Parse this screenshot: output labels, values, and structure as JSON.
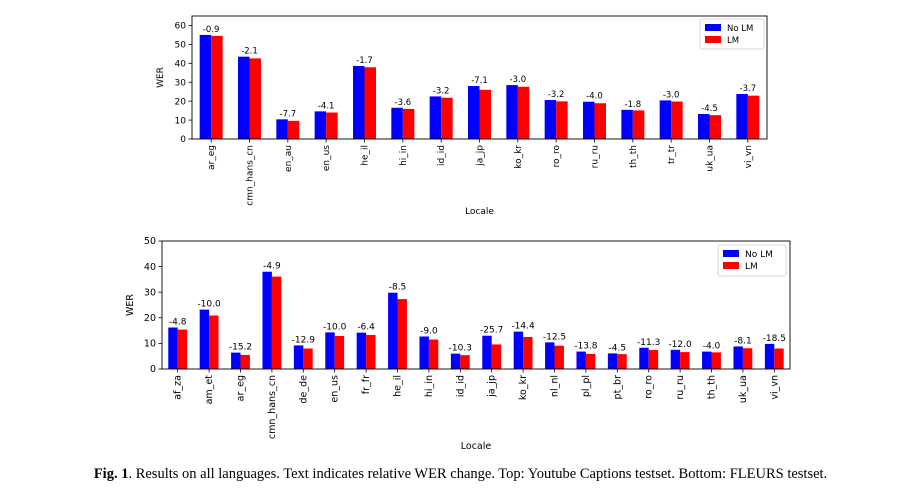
{
  "caption": {
    "label": "Fig. 1",
    "text": ". Results on all languages. Text indicates relative WER change. Top: Youtube Captions testset. Bottom: FLEURS testset."
  },
  "colors": {
    "no_lm": "#0000ff",
    "lm": "#ff0000"
  },
  "chart_data": [
    {
      "type": "bar",
      "title": "",
      "xlabel": "Locale",
      "ylabel": "WER",
      "ylim": [
        0,
        65
      ],
      "yticks": [
        0,
        10,
        20,
        30,
        40,
        50,
        60
      ],
      "grid": false,
      "legend_position": "top-right",
      "categories": [
        "ar_eg",
        "cmn_hans_cn",
        "en_au",
        "en_us",
        "he_il",
        "hi_in",
        "id_id",
        "ja_jp",
        "ko_kr",
        "ro_ro",
        "ru_ru",
        "th_th",
        "tr_tr",
        "uk_ua",
        "vi_vn"
      ],
      "series": [
        {
          "name": "No LM",
          "color": "#0000ff",
          "values": [
            55.0,
            43.5,
            10.4,
            14.6,
            38.6,
            16.5,
            22.5,
            28.0,
            28.5,
            20.6,
            19.7,
            15.4,
            20.4,
            13.2,
            23.8
          ]
        },
        {
          "name": "LM",
          "color": "#ff0000",
          "values": [
            54.5,
            42.6,
            9.6,
            14.0,
            37.9,
            15.9,
            21.8,
            26.0,
            27.6,
            19.9,
            18.9,
            15.1,
            19.8,
            12.6,
            22.9
          ]
        }
      ],
      "labels": [
        "-0.9",
        "-2.1",
        "-7.7",
        "-4.1",
        "-1.7",
        "-3.6",
        "-3.2",
        "-7.1",
        "-3.0",
        "-3.2",
        "-4.0",
        "-1.8",
        "-3.0",
        "-4.5",
        "-3.7"
      ]
    },
    {
      "type": "bar",
      "title": "",
      "xlabel": "Locale",
      "ylabel": "WER",
      "ylim": [
        0,
        50
      ],
      "yticks": [
        0,
        10,
        20,
        30,
        40,
        50
      ],
      "grid": false,
      "legend_position": "top-right",
      "categories": [
        "af_za",
        "am_et",
        "ar_eg",
        "cmn_hans_cn",
        "de_de",
        "en_us",
        "fr_fr",
        "he_il",
        "hi_in",
        "id_id",
        "ja_jp",
        "ko_kr",
        "nl_nl",
        "pl_pl",
        "pt_br",
        "ro_ro",
        "ru_ru",
        "th_th",
        "uk_ua",
        "vi_vn"
      ],
      "series": [
        {
          "name": "No LM",
          "color": "#0000ff",
          "values": [
            16.2,
            23.2,
            6.4,
            38.0,
            9.2,
            14.3,
            14.2,
            29.8,
            12.7,
            6.0,
            13.0,
            14.6,
            10.4,
            6.8,
            6.1,
            8.3,
            7.5,
            6.8,
            8.8,
            9.8
          ]
        },
        {
          "name": "LM",
          "color": "#ff0000",
          "values": [
            15.4,
            20.9,
            5.5,
            36.1,
            8.0,
            12.9,
            13.3,
            27.3,
            11.5,
            5.4,
            9.6,
            12.5,
            9.1,
            5.9,
            5.8,
            7.4,
            6.6,
            6.5,
            8.1,
            8.0
          ]
        }
      ],
      "labels": [
        "-4.8",
        "-10.0",
        "-15.2",
        "-4.9",
        "-12.9",
        "-10.0",
        "-6.4",
        "-8.5",
        "-9.0",
        "-10.3",
        "-25.7",
        "-14.4",
        "-12.5",
        "-13.8",
        "-4.5",
        "-11.3",
        "-12.0",
        "-4.0",
        "-8.1",
        "-18.5"
      ]
    }
  ]
}
